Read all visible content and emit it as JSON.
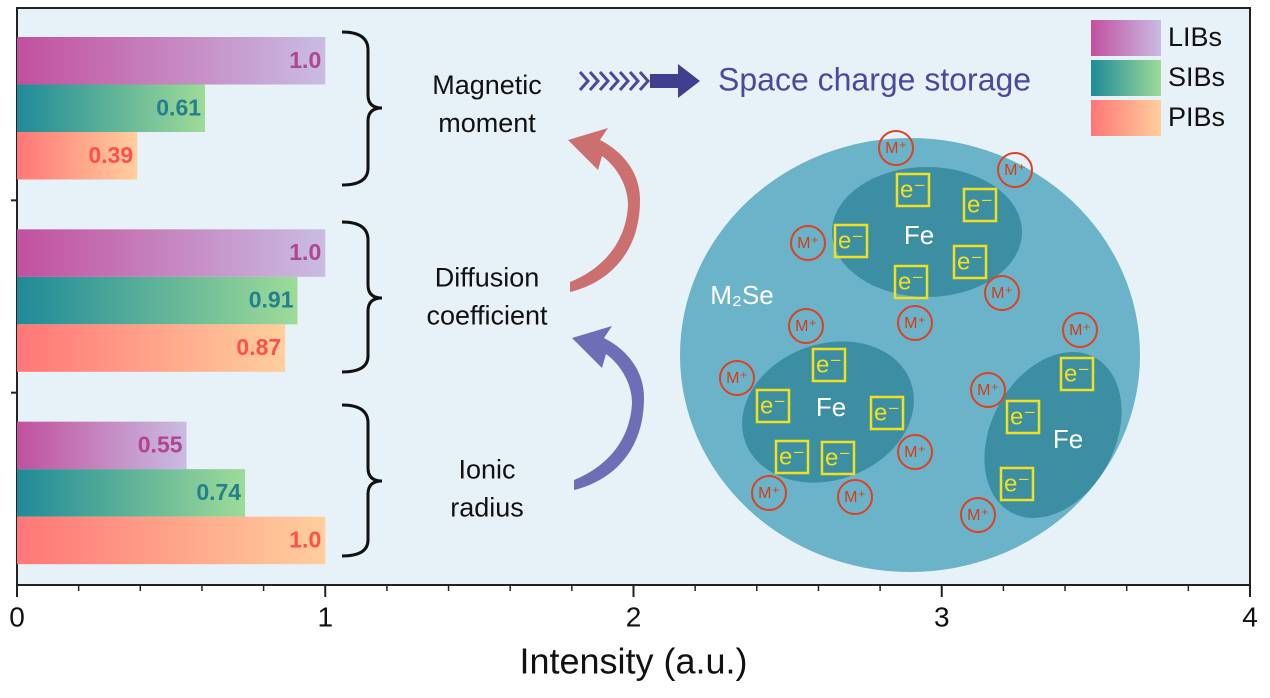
{
  "chart_data": {
    "type": "hbar",
    "xlabel": "Intensity (a.u.)",
    "categories": [
      "Magnetic moment",
      "Diffusion coefficient",
      "Ionic radius"
    ],
    "series": [
      {
        "name": "LIBs",
        "color": "#c2509f",
        "color_end": "#c9bce2",
        "label_color": "#b04590",
        "values": [
          1.0,
          1.0,
          0.55
        ],
        "value_labels": [
          "1.0",
          "1.0",
          "0.55"
        ]
      },
      {
        "name": "SIBs",
        "color": "#1f8a99",
        "color_end": "#9edb98",
        "label_color": "#23808c",
        "values": [
          0.61,
          0.91,
          0.74
        ]
      },
      {
        "name": "PIBs",
        "color": "#ff7676",
        "color_end": "#ffcf9c",
        "label_color": "#ff4f4f",
        "values": [
          0.39,
          0.87,
          1.0
        ],
        "value_labels": [
          "0.39",
          "0.87",
          "1.0"
        ]
      }
    ],
    "xlim": [
      0,
      4
    ],
    "xticks": [
      0,
      1,
      2,
      3,
      4
    ],
    "xminorticks": [
      0.2,
      0.4,
      0.6,
      0.8,
      1.2,
      1.4,
      1.6,
      1.8,
      2.2,
      2.4,
      2.6,
      2.8,
      3.2,
      3.4,
      3.6,
      3.8
    ],
    "legend": "upper right",
    "annotations": {
      "heading": "Space charge storage",
      "matrix": "M₂Se",
      "fe_labels": [
        "Fe",
        "Fe",
        "Fe"
      ],
      "electron_labels": [
        "e⁻",
        "e⁻",
        "e⁻",
        "e⁻",
        "e⁻",
        "e⁻",
        "e⁻",
        "e⁻",
        "e⁻",
        "e⁻",
        "e⁻",
        "e⁻",
        "e⁻"
      ],
      "ion_labels": [
        "M⁺",
        "M⁺",
        "M⁺",
        "M⁺",
        "M⁺",
        "M⁺",
        "M⁺",
        "M⁺",
        "M⁺",
        "M⁺",
        "M⁺",
        "M⁺",
        "M⁺"
      ]
    }
  }
}
